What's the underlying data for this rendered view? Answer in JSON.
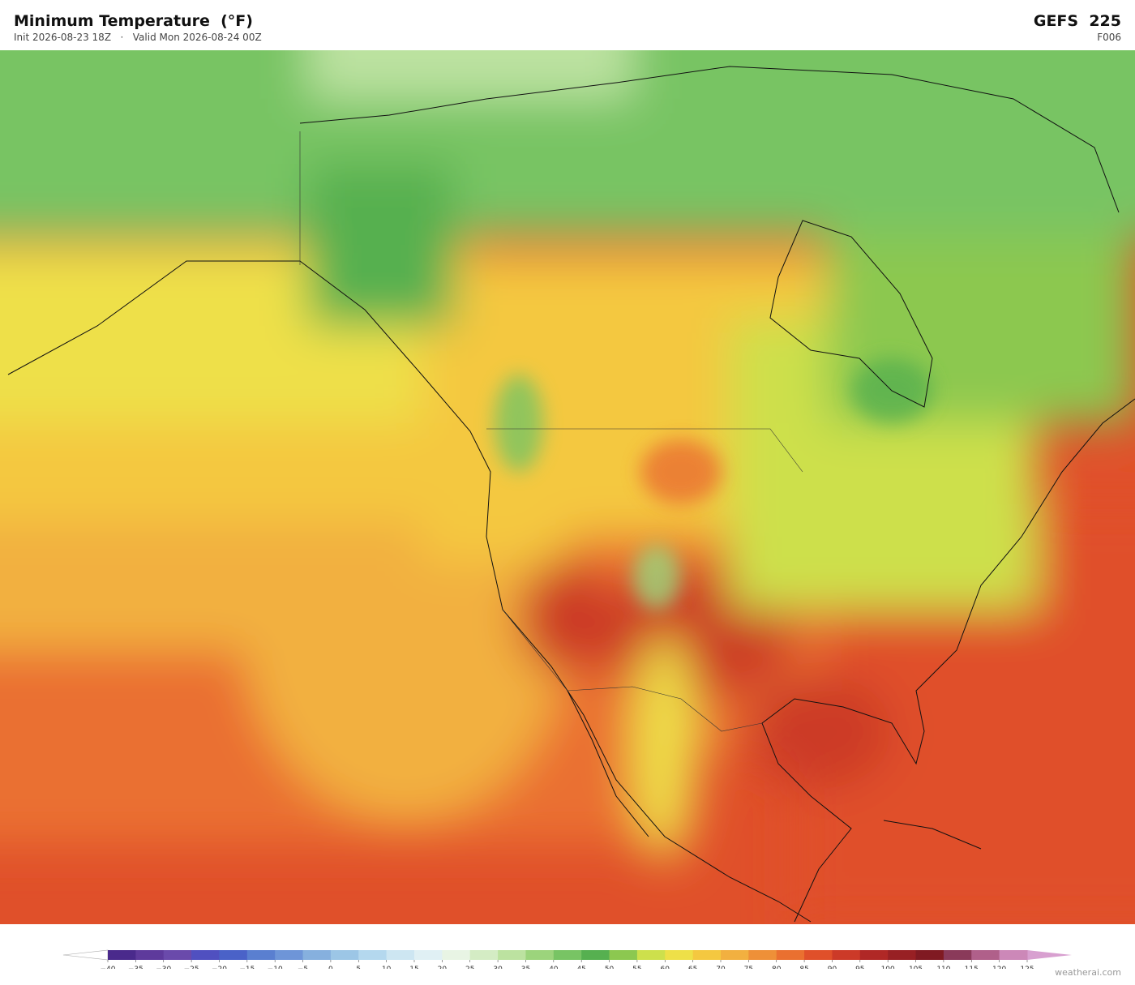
{
  "header": {
    "title": "Minimum Temperature  (°F)",
    "init": "Init 2026-08-23 18Z",
    "separator": "·",
    "valid": "Valid Mon 2026-08-24 00Z",
    "model": "GEFS  225",
    "forecast_hour": "F006"
  },
  "colorbar": {
    "lim": [
      -40,
      125
    ],
    "ticks": [
      {
        "value": -40,
        "label": "−40"
      },
      {
        "value": -35,
        "label": "−35"
      },
      {
        "value": -30,
        "label": "−30"
      },
      {
        "value": -25,
        "label": "−25"
      },
      {
        "value": -20,
        "label": "−20"
      },
      {
        "value": -15,
        "label": "−15"
      },
      {
        "value": -10,
        "label": "−10"
      },
      {
        "value": -5,
        "label": "−5"
      },
      0,
      5,
      10,
      15,
      20,
      25,
      30,
      35,
      40,
      45,
      50,
      55,
      60,
      65,
      70,
      75,
      80,
      85,
      90,
      95,
      100,
      105,
      110,
      115,
      120,
      125
    ],
    "colors": [
      "#4a2a8c",
      "#5e3a9c",
      "#6a4aab",
      "#5050c0",
      "#4a62c8",
      "#5a7fd0",
      "#6e95d8",
      "#86b0de",
      "#9cc6e6",
      "#b4d8ee",
      "#cde6f2",
      "#e0f0f4",
      "#e8f4e4",
      "#d4ecc4",
      "#bce2a0",
      "#9cd47c",
      "#78c464",
      "#56b050",
      "#8cc850",
      "#cde04c",
      "#eee048",
      "#f4c840",
      "#f2b040",
      "#ee9038",
      "#ea7030",
      "#e0502a",
      "#cc3a28",
      "#b02826",
      "#982024",
      "#801a22",
      "#8a3a5a",
      "#b0608a",
      "#cc88b8"
    ],
    "under_color": "#ffffff",
    "over_color": "#d8a0d0"
  },
  "footer": {
    "credit": "weatherai.com"
  }
}
